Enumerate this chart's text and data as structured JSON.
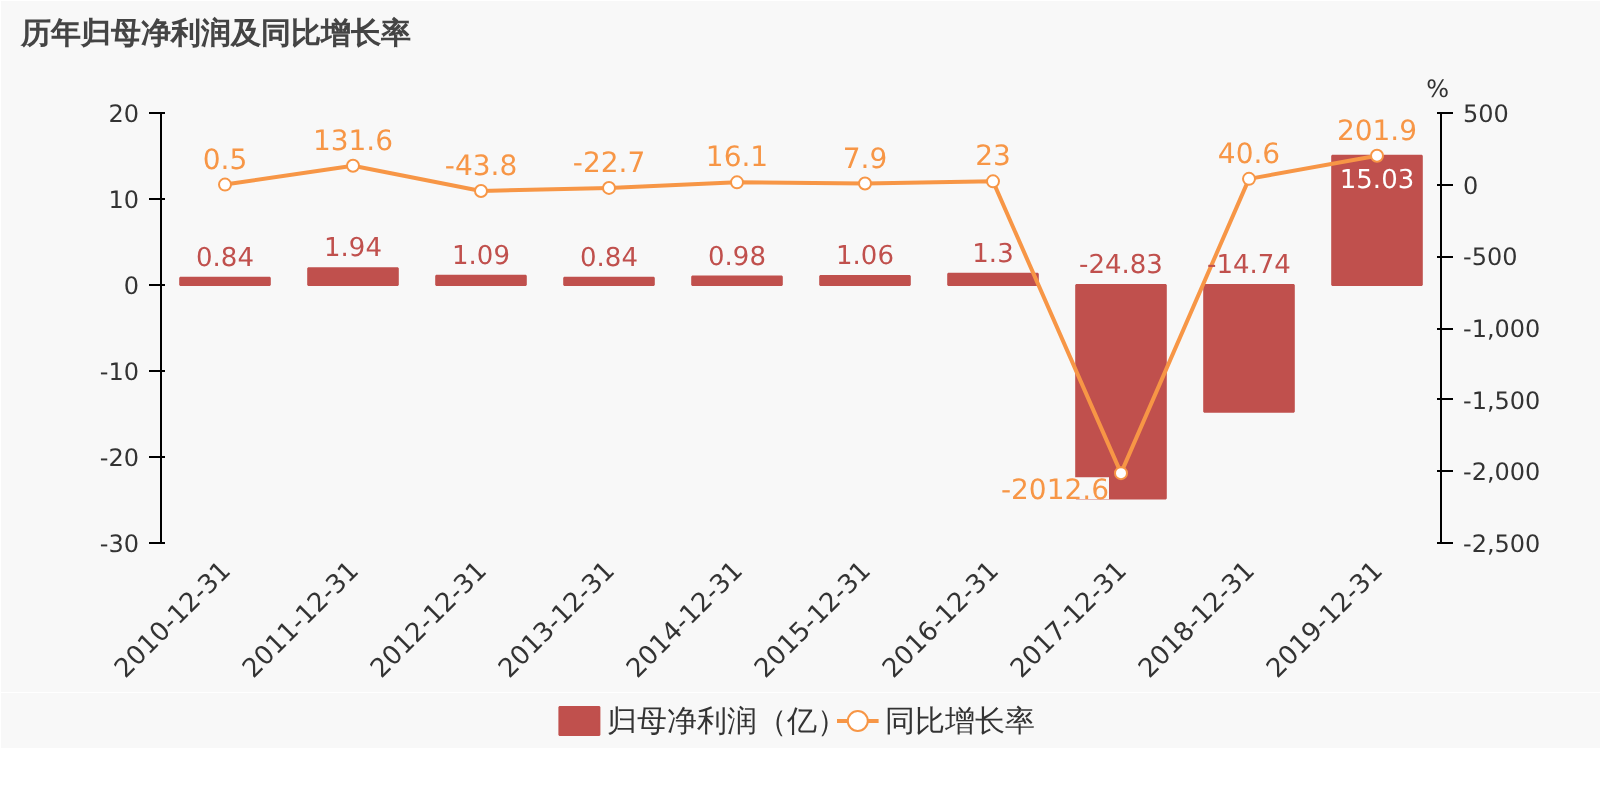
{
  "chart_data": {
    "type": "bar",
    "title": "历年归母净利润及同比增长率",
    "categories": [
      "2010-12-31",
      "2011-12-31",
      "2012-12-31",
      "2013-12-31",
      "2014-12-31",
      "2015-12-31",
      "2016-12-31",
      "2017-12-31",
      "2018-12-31",
      "2019-12-31"
    ],
    "series": [
      {
        "name": "归母净利润（亿）",
        "color": "#c0504d",
        "values": [
          0.84,
          1.94,
          1.09,
          0.84,
          0.98,
          1.06,
          1.3,
          -24.83,
          -14.74,
          15.03
        ]
      },
      {
        "name": "同比增长率",
        "type": "line",
        "axis": "y2",
        "color": "#f79646",
        "marker": "circle",
        "values": [
          0.5,
          131.6,
          -43.8,
          -22.7,
          16.1,
          7.9,
          23,
          -2012.6,
          40.6,
          201.9
        ]
      }
    ],
    "ylim": [
      -30,
      20
    ],
    "yticks": [
      -30,
      -20,
      -10,
      0,
      10,
      20
    ],
    "y2label": "%",
    "y2lim": [
      -2500,
      500
    ],
    "y2ticks": [
      {
        "value": -2500,
        "label": "-2,500"
      },
      {
        "value": -2000,
        "label": "-2,000"
      },
      {
        "value": -1500,
        "label": "-1,500"
      },
      {
        "value": -1000,
        "label": "-1,000"
      },
      -500,
      0,
      500
    ],
    "data_labels": true,
    "legend": "bottom",
    "grid": false
  }
}
